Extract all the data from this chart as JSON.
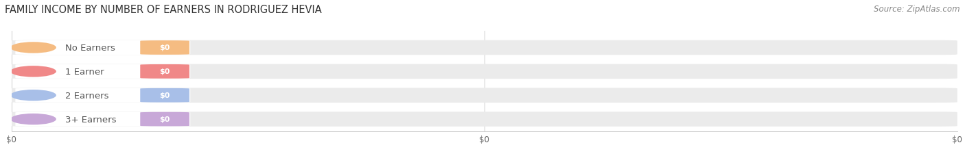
{
  "title": "FAMILY INCOME BY NUMBER OF EARNERS IN RODRIGUEZ HEVIA",
  "source": "Source: ZipAtlas.com",
  "categories": [
    "No Earners",
    "1 Earner",
    "2 Earners",
    "3+ Earners"
  ],
  "values": [
    0,
    0,
    0,
    0
  ],
  "bar_colors": [
    "#f5bc82",
    "#f08888",
    "#a8bfe8",
    "#c8a8d8"
  ],
  "value_labels": [
    "$0",
    "$0",
    "$0",
    "$0"
  ],
  "background_color": "#ffffff",
  "bar_bg_color": "#ebebeb",
  "title_fontsize": 10.5,
  "source_fontsize": 8.5,
  "label_fontsize": 9.5
}
